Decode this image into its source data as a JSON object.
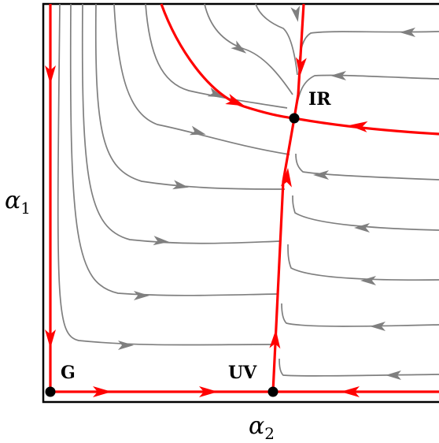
{
  "axes": {
    "x_label_symbol": "α",
    "x_label_sub": "2",
    "y_label_symbol": "α",
    "y_label_sub": "1"
  },
  "fixed_points": [
    {
      "id": "G",
      "label": "G"
    },
    {
      "id": "UV",
      "label": "UV"
    },
    {
      "id": "IR",
      "label": "IR"
    }
  ],
  "colors": {
    "separatrix": "#ff0000",
    "flow_lines": "#7f7f7f",
    "fixed_point": "#000000",
    "frame": "#000000"
  }
}
